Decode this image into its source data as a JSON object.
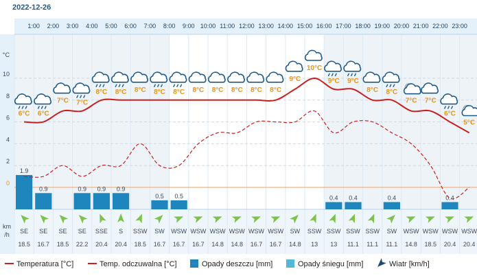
{
  "date": "2022-12-26",
  "colors": {
    "temperature": "#cc1e1e",
    "feels_like": "#cc1e1e",
    "rain": "#1f85bd",
    "snow": "#54b9d6",
    "wind": "#1e4a7a",
    "label_orange": "#e69516",
    "grid_blue": "#cfe3f2",
    "header_bg": "#e4f1fa",
    "night_bg": "#eef3f8",
    "wind_arrow": "#7fc24b"
  },
  "labels": {
    "temp_unit": "°C",
    "wind_unit_line1": "km",
    "wind_unit_line2": "/h"
  },
  "legend": {
    "temperature": "Temperatura [°C]",
    "feels_like": "Temp. odczuwalna [°C]",
    "rain": "Opady deszczu [mm]",
    "snow": "Opady śniegu [mm]",
    "wind": "Wiatr [km/h]"
  },
  "chart_data": {
    "type": "line",
    "hours": [
      "1:00",
      "2:00",
      "3:00",
      "4:00",
      "5:00",
      "6:00",
      "7:00",
      "8:00",
      "9:00",
      "10:00",
      "11:00",
      "12:00",
      "13:00",
      "14:00",
      "15:00",
      "16:00",
      "17:00",
      "18:00",
      "19:00",
      "20:00",
      "21:00",
      "22:00",
      "23:00"
    ],
    "y_ticks": [
      0,
      2,
      4,
      6,
      8,
      10
    ],
    "temperature": [
      6,
      6,
      7,
      7,
      8,
      8,
      8,
      8,
      8,
      8,
      8,
      8,
      8,
      8,
      9,
      10,
      9,
      9,
      8,
      8,
      7,
      7,
      6,
      5
    ],
    "temperature_labels": [
      "6°C",
      "6°C",
      "7°C",
      "7°C",
      "8°C",
      "8°C",
      "8°C",
      "8°C",
      "8°C",
      "8°C",
      "8°C",
      "8°C",
      "8°C",
      "8°C",
      "9°C",
      "10°C",
      "9°C",
      "9°C",
      "8°C",
      "8°C",
      "7°C",
      "7°C",
      "6°C",
      "5°C"
    ],
    "feels_like": [
      1,
      1,
      2,
      1,
      2,
      2,
      4,
      2,
      2,
      4,
      5,
      5,
      6,
      6,
      6,
      7,
      5,
      6,
      6,
      5,
      4,
      2,
      -1,
      0
    ],
    "rain": [
      1.9,
      0.9,
      0,
      0.9,
      0.9,
      0.9,
      0,
      0.5,
      0.5,
      0,
      0,
      0,
      0,
      0,
      0,
      0,
      0.4,
      0.4,
      0,
      0.4,
      0,
      0,
      0.4,
      0
    ],
    "rain_labels": [
      "1.9",
      "0.9",
      "",
      "0.9",
      "0.9",
      "0.9",
      "",
      "0.5",
      "0.5",
      "",
      "",
      "",
      "",
      "",
      "",
      "",
      "0.4",
      "0.4",
      "",
      "0.4",
      "",
      "",
      "0.4",
      ""
    ],
    "weather_icons": [
      "rain-cloud-icon",
      "rain-cloud-icon",
      "cloud-icon",
      "rain-cloud-icon",
      "rain-cloud-icon",
      "rain-cloud-icon",
      "cloud-icon",
      "rain-cloud-icon",
      "rain-cloud-icon",
      "cloud-icon",
      "cloud-icon",
      "cloud-icon",
      "cloud-icon",
      "cloud-icon",
      "cloud-icon",
      "cloud-icon",
      "rain-cloud-icon",
      "rain-cloud-icon",
      "cloud-icon",
      "rain-cloud-icon",
      "night-cloud-icon",
      "cloud-icon",
      "rain-cloud-icon",
      "night-cloud-icon"
    ],
    "wind_dir": [
      "SE",
      "SE",
      "SE",
      "SE",
      "SSE",
      "S",
      "SSW",
      "SW",
      "WSW",
      "WSW",
      "WSW",
      "WSW",
      "WSW",
      "WSW",
      "SW",
      "SSW",
      "SSW",
      "SSW",
      "SSW",
      "SW",
      "WSW",
      "WSW",
      "WSW",
      "WSW"
    ],
    "wind_speed": [
      "18.5",
      "16.7",
      "18.5",
      "22.2",
      "20.4",
      "20.4",
      "18.5",
      "16.7",
      "16.7",
      "16.7",
      "14.8",
      "14.8",
      "16.7",
      "16.7",
      "14.8",
      "13",
      "13",
      "11.1",
      "11.1",
      "11.1",
      "14.8",
      "18.5",
      "20.4",
      "20.4"
    ]
  }
}
